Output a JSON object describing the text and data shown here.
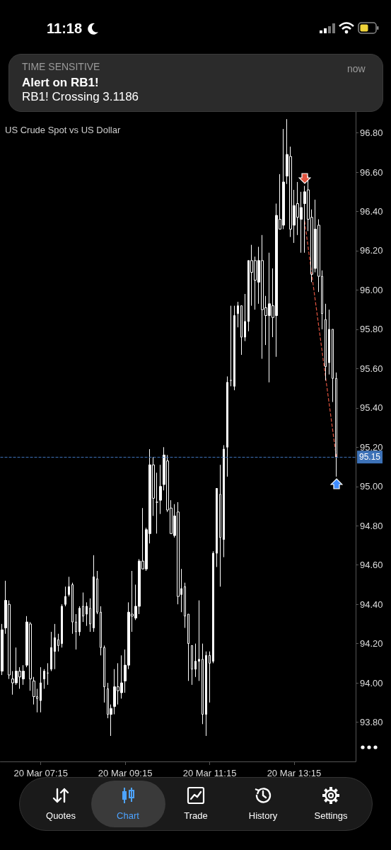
{
  "chart_data": {
    "type": "candlestick",
    "title": "US Crude Spot vs US Dollar",
    "categories": [
      null,
      null,
      null,
      null,
      null,
      null,
      null,
      null,
      null,
      null,
      null,
      "20 Mar 07:15",
      null,
      null,
      null,
      null,
      null,
      null,
      null,
      null,
      null,
      null,
      null,
      null,
      null,
      null,
      null,
      null,
      null,
      null,
      null,
      null,
      null,
      null,
      null,
      "20 Mar 09:15",
      null,
      null,
      null,
      null,
      null,
      null,
      null,
      null,
      null,
      null,
      null,
      null,
      null,
      null,
      null,
      null,
      null,
      null,
      null,
      null,
      null,
      null,
      null,
      "20 Mar 11:15",
      null,
      null,
      null,
      null,
      null,
      null,
      null,
      null,
      null,
      null,
      null,
      null,
      null,
      null,
      null,
      null,
      null,
      null,
      null,
      null,
      null,
      null,
      null,
      "20 Mar 13:15",
      null,
      null,
      null,
      null,
      null,
      null,
      null,
      null,
      null,
      null,
      null,
      null
    ],
    "color": "#ffffff",
    "ohlc": [
      [
        94.06,
        94.3,
        94.04,
        94.27
      ],
      [
        94.28,
        94.52,
        94.25,
        94.42
      ],
      [
        94.4,
        94.42,
        94.02,
        94.04
      ],
      [
        94.02,
        94.06,
        93.94,
        94.0
      ],
      [
        94.0,
        94.18,
        93.99,
        94.06
      ],
      [
        94.06,
        94.08,
        93.97,
        94.03
      ],
      [
        94.02,
        94.09,
        93.99,
        94.06
      ],
      [
        94.09,
        94.34,
        94.08,
        94.31
      ],
      [
        94.3,
        94.31,
        93.96,
        94.02
      ],
      [
        94.01,
        94.03,
        93.89,
        93.93
      ],
      [
        93.93,
        93.97,
        93.85,
        93.92
      ],
      [
        93.91,
        94.08,
        93.85,
        94.0
      ],
      [
        94.02,
        94.07,
        93.97,
        94.06
      ],
      [
        94.05,
        94.1,
        93.99,
        94.05
      ],
      [
        94.07,
        94.26,
        94.06,
        94.18
      ],
      [
        94.16,
        94.3,
        94.07,
        94.23
      ],
      [
        94.22,
        94.25,
        94.16,
        94.19
      ],
      [
        94.2,
        94.4,
        94.18,
        94.39
      ],
      [
        94.4,
        94.49,
        94.39,
        94.44
      ],
      [
        94.45,
        94.54,
        94.44,
        94.49
      ],
      [
        94.5,
        94.51,
        94.25,
        94.31
      ],
      [
        94.31,
        94.35,
        94.17,
        94.26
      ],
      [
        94.26,
        94.39,
        94.24,
        94.38
      ],
      [
        94.39,
        94.46,
        94.31,
        94.34
      ],
      [
        94.35,
        94.41,
        94.29,
        94.39
      ],
      [
        94.38,
        94.43,
        94.26,
        94.3
      ],
      [
        94.28,
        94.65,
        94.26,
        94.54
      ],
      [
        94.53,
        94.57,
        94.35,
        94.36
      ],
      [
        94.36,
        94.39,
        94.14,
        94.18
      ],
      [
        94.18,
        94.19,
        93.9,
        93.98
      ],
      [
        93.97,
        94.0,
        93.82,
        93.84
      ],
      [
        93.84,
        93.89,
        93.73,
        93.87
      ],
      [
        93.88,
        94.07,
        93.84,
        93.98
      ],
      [
        93.98,
        94.1,
        93.89,
        93.96
      ],
      [
        93.95,
        94.14,
        93.92,
        94.0
      ],
      [
        94.01,
        94.17,
        93.95,
        94.09
      ],
      [
        94.09,
        94.41,
        94.07,
        94.36
      ],
      [
        94.35,
        94.57,
        94.26,
        94.34
      ],
      [
        94.33,
        94.5,
        94.32,
        94.39
      ],
      [
        94.39,
        94.63,
        94.35,
        94.62
      ],
      [
        94.62,
        94.89,
        94.58,
        94.58
      ],
      [
        94.58,
        94.79,
        94.57,
        94.78
      ],
      [
        94.76,
        95.19,
        94.71,
        95.11
      ],
      [
        95.11,
        95.15,
        94.85,
        94.94
      ],
      [
        94.92,
        95.07,
        94.76,
        94.92
      ],
      [
        94.93,
        95.11,
        94.86,
        95.0
      ],
      [
        95.01,
        95.2,
        94.98,
        95.16
      ],
      [
        95.13,
        95.16,
        94.87,
        94.88
      ],
      [
        94.89,
        94.93,
        94.76,
        94.76
      ],
      [
        94.75,
        94.91,
        94.74,
        94.85
      ],
      [
        94.87,
        94.92,
        94.4,
        94.44
      ],
      [
        94.45,
        94.58,
        94.36,
        94.48
      ],
      [
        94.49,
        94.51,
        94.28,
        94.34
      ],
      [
        94.35,
        94.35,
        94.01,
        94.2
      ],
      [
        94.19,
        94.19,
        93.99,
        94.07
      ],
      [
        94.07,
        94.2,
        94.03,
        94.11
      ],
      [
        94.11,
        94.42,
        94.01,
        94.12
      ],
      [
        94.12,
        94.2,
        93.79,
        93.84
      ],
      [
        93.84,
        94.16,
        93.73,
        94.14
      ],
      [
        94.14,
        94.16,
        93.9,
        94.1
      ],
      [
        94.11,
        94.67,
        94.1,
        94.66
      ],
      [
        94.66,
        94.99,
        94.59,
        94.99
      ],
      [
        94.96,
        95.11,
        94.49,
        94.74
      ],
      [
        94.73,
        95.21,
        94.64,
        95.19
      ],
      [
        95.2,
        95.56,
        95.05,
        95.53
      ],
      [
        95.54,
        95.92,
        95.51,
        95.54
      ],
      [
        95.51,
        95.92,
        95.49,
        95.87
      ],
      [
        95.88,
        95.94,
        95.81,
        95.92
      ],
      [
        95.92,
        95.92,
        95.67,
        95.76
      ],
      [
        95.76,
        95.98,
        95.74,
        95.84
      ],
      [
        95.84,
        96.15,
        95.79,
        96.15
      ],
      [
        96.15,
        96.23,
        95.92,
        96.09
      ],
      [
        96.15,
        96.17,
        95.9,
        96.05
      ],
      [
        96.04,
        96.22,
        95.93,
        96.15
      ],
      [
        96.15,
        96.28,
        95.65,
        95.9
      ],
      [
        95.91,
        95.97,
        95.72,
        95.87
      ],
      [
        95.87,
        96.19,
        95.53,
        95.93
      ],
      [
        95.92,
        96.11,
        95.76,
        95.86
      ],
      [
        95.87,
        96.44,
        95.66,
        96.38
      ],
      [
        96.36,
        96.59,
        96.31,
        96.31
      ],
      [
        96.33,
        96.82,
        96.31,
        96.55
      ],
      [
        96.58,
        96.87,
        96.54,
        96.69
      ],
      [
        96.68,
        96.73,
        96.27,
        96.31
      ],
      [
        96.33,
        96.51,
        96.24,
        96.43
      ],
      [
        96.44,
        96.55,
        96.28,
        96.37
      ],
      [
        96.36,
        96.5,
        96.19,
        96.42
      ],
      [
        96.44,
        96.53,
        96.19,
        96.5
      ],
      [
        96.51,
        96.58,
        96.3,
        96.36
      ],
      [
        96.37,
        96.41,
        96.04,
        96.08
      ],
      [
        96.11,
        96.46,
        96.09,
        96.31
      ],
      [
        96.33,
        96.36,
        95.99,
        96.07
      ],
      [
        96.07,
        96.1,
        95.8,
        95.88
      ],
      [
        95.85,
        95.93,
        95.54,
        95.61
      ],
      [
        95.63,
        95.9,
        95.57,
        95.8
      ],
      [
        95.8,
        95.8,
        95.43,
        95.55
      ],
      [
        95.55,
        95.58,
        95.05,
        95.15
      ]
    ],
    "series": [
      {
        "type": "line",
        "color": "#e0533f",
        "line_style": "dashed",
        "marker": "none",
        "values": [
          null,
          null,
          null,
          null,
          null,
          null,
          null,
          null,
          null,
          null,
          null,
          null,
          null,
          null,
          null,
          null,
          null,
          null,
          null,
          null,
          null,
          null,
          null,
          null,
          null,
          null,
          null,
          null,
          null,
          null,
          null,
          null,
          null,
          null,
          null,
          null,
          null,
          null,
          null,
          null,
          null,
          null,
          null,
          null,
          null,
          null,
          null,
          null,
          null,
          null,
          null,
          null,
          null,
          null,
          null,
          null,
          null,
          null,
          null,
          null,
          null,
          null,
          null,
          null,
          null,
          null,
          null,
          null,
          null,
          null,
          null,
          null,
          null,
          null,
          null,
          null,
          null,
          null,
          null,
          null,
          null,
          null,
          null,
          null,
          null,
          null,
          96.35,
          null,
          null,
          null,
          null,
          null,
          null,
          null,
          null,
          95.15
        ]
      }
    ],
    "ylim": [
      93.6,
      96.95
    ],
    "yticks": [
      {
        "value": 93.8,
        "label": "93.80"
      },
      {
        "value": 94,
        "label": "94.00"
      },
      {
        "value": 94.2,
        "label": "94.20"
      },
      {
        "value": 94.4,
        "label": "94.40"
      },
      {
        "value": 94.6,
        "label": "94.60"
      },
      {
        "value": 94.8,
        "label": "94.80"
      },
      {
        "value": 95,
        "label": "95.00"
      },
      {
        "value": 95.2,
        "label": "95.20"
      },
      {
        "value": 95.4,
        "label": "95.40"
      },
      {
        "value": 95.6,
        "label": "95.60"
      },
      {
        "value": 95.8,
        "label": "95.80"
      },
      {
        "value": 96,
        "label": "96.00"
      },
      {
        "value": 96.2,
        "label": "96.20"
      },
      {
        "value": 96.4,
        "label": "96.40"
      },
      {
        "value": 96.6,
        "label": "96.60"
      },
      {
        "value": 96.8,
        "label": "96.80"
      }
    ],
    "ref_lines": [
      {
        "axis": "y",
        "value": 95.15,
        "label": "95.15",
        "color": "#3d72b8",
        "line_style": "dashed"
      }
    ],
    "annotations": [
      "11:18",
      "TIME SENSITIVE",
      "Alert on RB1!",
      "RB1! Crossing 3.1186",
      "now",
      "Quotes",
      "Chart",
      "Trade",
      "History",
      "Settings"
    ]
  }
}
